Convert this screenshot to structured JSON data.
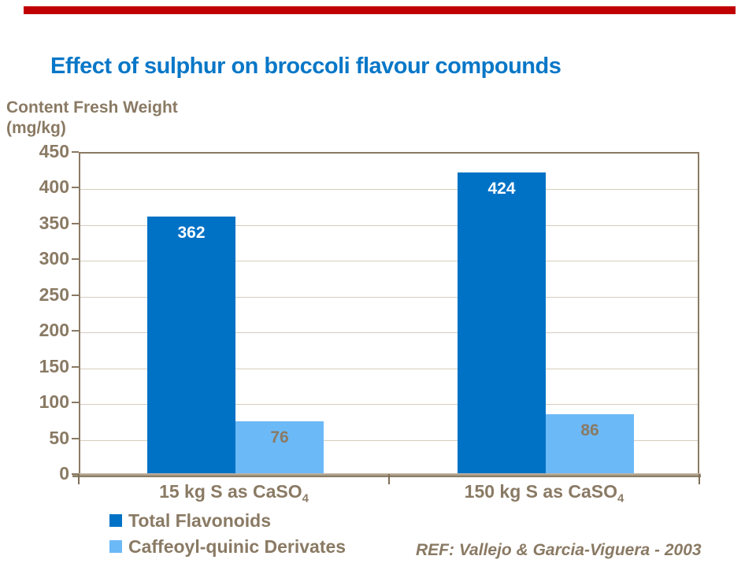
{
  "title": "Effect of sulphur on broccoli flavour compounds",
  "axis_title": {
    "line1": "Content Fresh Weight",
    "line2": "(mg/kg)"
  },
  "ref_note": "REF: Vallejo & Garcia-Viguera - 2003",
  "x_labels": [
    {
      "base": "15 kg S as CaSO",
      "sub": "4"
    },
    {
      "base": "150 kg S as CaSO",
      "sub": "4"
    }
  ],
  "chart_data": {
    "type": "bar",
    "title": "Effect of sulphur on broccoli flavour compounds",
    "categories": [
      "15 kg S as CaSO4",
      "150 kg S as CaSO4"
    ],
    "series": [
      {
        "name": "Total Flavonoids",
        "values": [
          362,
          424
        ],
        "color": "#0072C6",
        "value_label_color": "#FFFFFF"
      },
      {
        "name": "Caffeoyl-quinic Derivates",
        "values": [
          76,
          86
        ],
        "color": "#6CB9F7",
        "value_label_color": "#8A7A64"
      }
    ],
    "ylabel": "Content Fresh Weight (mg/kg)",
    "ylim": [
      0,
      450
    ],
    "yticks": [
      0,
      50,
      100,
      150,
      200,
      250,
      300,
      350,
      400,
      450
    ],
    "grid": true,
    "legend_position": "bottom-left"
  },
  "colors": {
    "title_text": "#0877C7",
    "axis_text": "#8A7A64",
    "gridline": "#D6CCBE",
    "plot_border": "#8A7A64",
    "top_accent_bar": "#C00000",
    "series_dark_blue": "#0072C6",
    "series_light_blue": "#6CB9F7"
  }
}
